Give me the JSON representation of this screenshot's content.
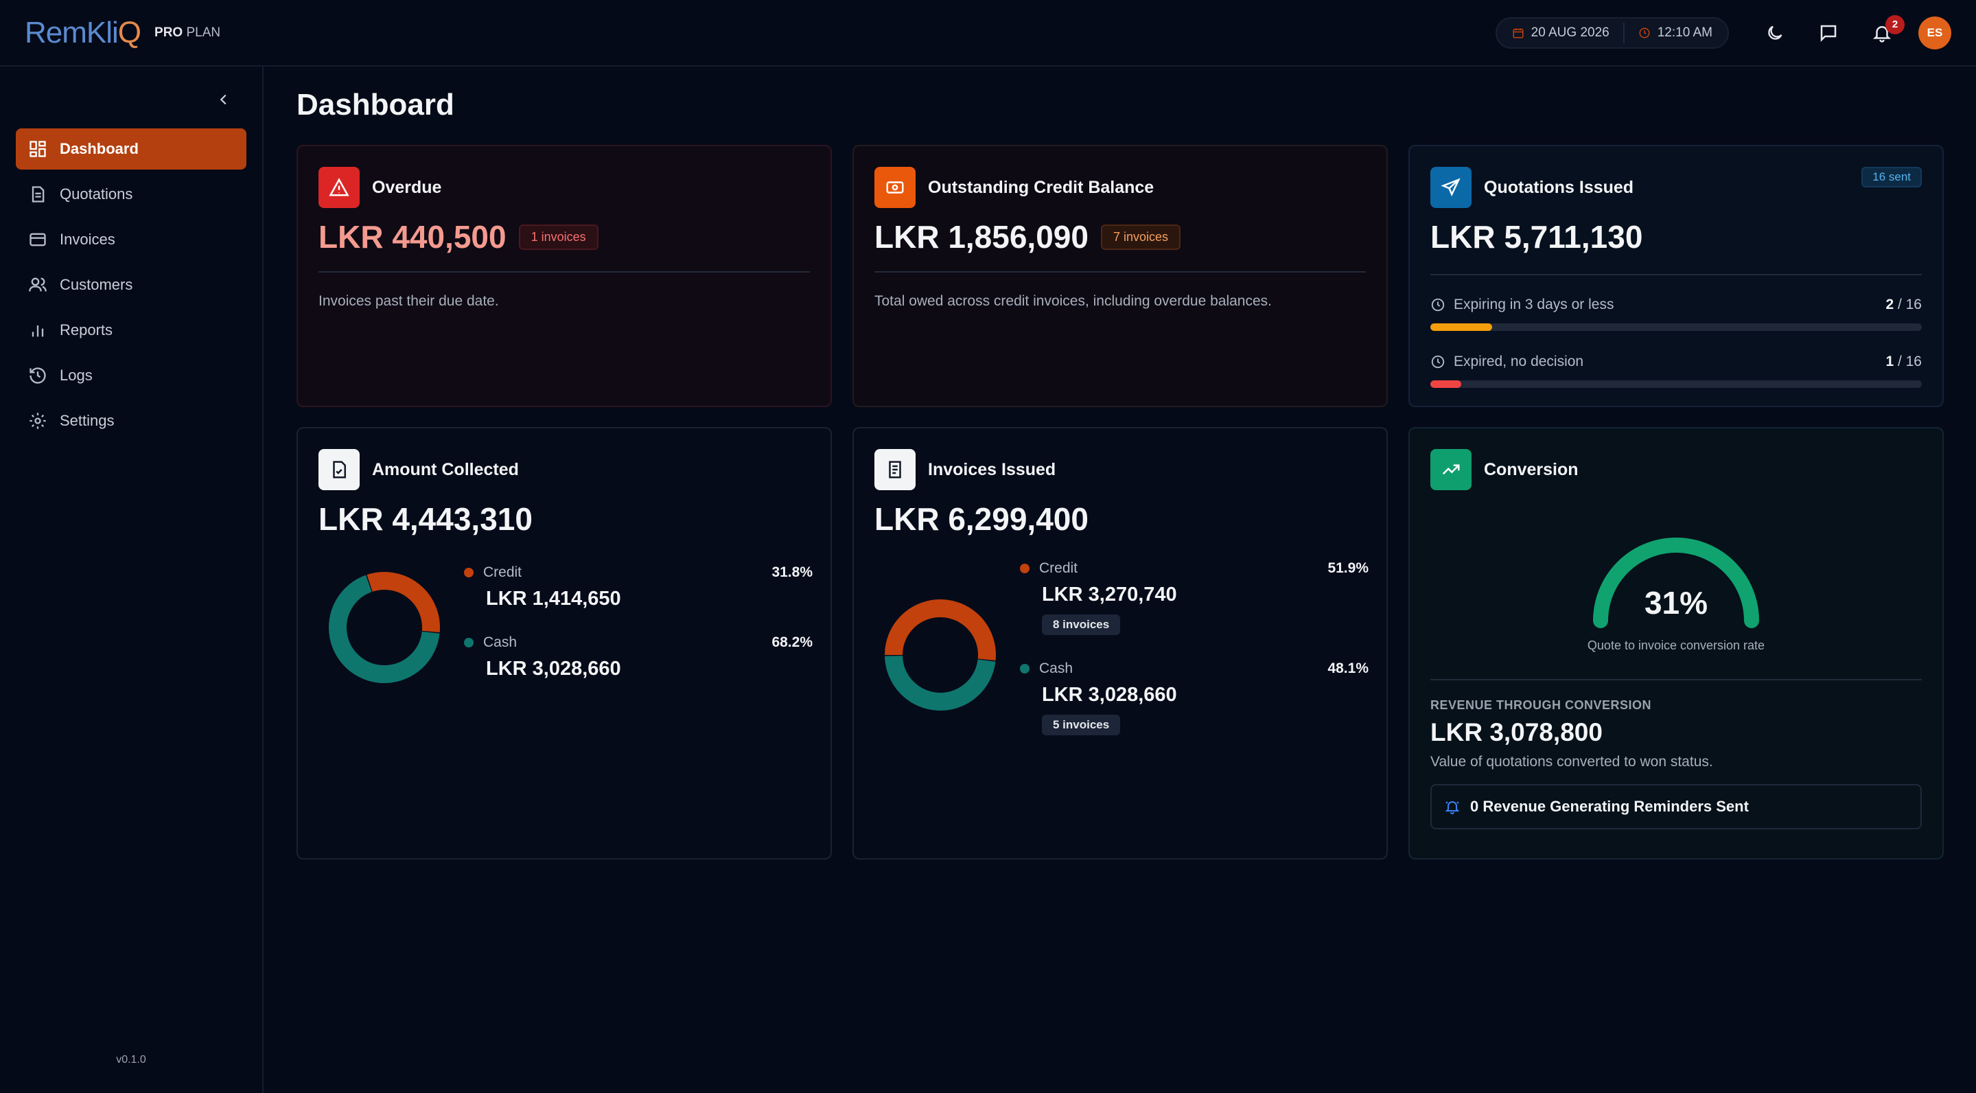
{
  "header": {
    "logo_main": "RemKli",
    "logo_accent": "Q",
    "plan_bold": "PRO",
    "plan_rest": " PLAN",
    "date": "20 AUG 2026",
    "time": "12:10 AM",
    "notification_count": "2",
    "avatar_initials": "ES"
  },
  "sidebar": {
    "items": [
      {
        "label": "Dashboard",
        "icon": "dashboard-icon",
        "active": true
      },
      {
        "label": "Quotations",
        "icon": "document-icon"
      },
      {
        "label": "Invoices",
        "icon": "credit-card-icon"
      },
      {
        "label": "Customers",
        "icon": "users-icon"
      },
      {
        "label": "Reports",
        "icon": "bar-chart-icon"
      },
      {
        "label": "Logs",
        "icon": "history-icon"
      },
      {
        "label": "Settings",
        "icon": "gear-icon"
      }
    ],
    "version": "v0.1.0"
  },
  "page": {
    "title": "Dashboard"
  },
  "colors": {
    "accent": "#b4400f",
    "credit": "#c2410c",
    "cash": "#0f766e",
    "gauge": "#10a36f"
  },
  "cards": {
    "overdue": {
      "title": "Overdue",
      "amount": "LKR 440,500",
      "chip": "1 invoices",
      "desc": "Invoices past their due date."
    },
    "outstanding": {
      "title": "Outstanding Credit Balance",
      "amount": "LKR 1,856,090",
      "chip": "7 invoices",
      "desc": "Total owed across credit invoices, including overdue balances."
    },
    "quotations": {
      "title": "Quotations Issued",
      "amount": "LKR 5,711,130",
      "chip": "16 sent",
      "expiring": {
        "label": "Expiring in 3 days or less",
        "count": "2",
        "total": " / 16",
        "fraction": 0.125
      },
      "expired": {
        "label": "Expired, no decision",
        "count": "1",
        "total": " / 16",
        "fraction": 0.0625
      }
    },
    "collected": {
      "title": "Amount Collected",
      "amount": "LKR 4,443,310",
      "credit": {
        "label": "Credit",
        "pct": "31.8%",
        "value": "LKR 1,414,650",
        "fraction": 0.318
      },
      "cash": {
        "label": "Cash",
        "pct": "68.2%",
        "value": "LKR 3,028,660",
        "fraction": 0.682
      }
    },
    "issued": {
      "title": "Invoices Issued",
      "amount": "LKR 6,299,400",
      "credit": {
        "label": "Credit",
        "pct": "51.9%",
        "value": "LKR 3,270,740",
        "chip": "8 invoices",
        "fraction": 0.519
      },
      "cash": {
        "label": "Cash",
        "pct": "48.1%",
        "value": "LKR 3,028,660",
        "chip": "5 invoices",
        "fraction": 0.481
      }
    },
    "conversion": {
      "title": "Conversion",
      "rate": "31%",
      "rate_fraction": 0.31,
      "caption": "Quote to invoice conversion rate",
      "revenue_label": "REVENUE THROUGH CONVERSION",
      "revenue_value": "LKR 3,078,800",
      "revenue_desc": "Value of quotations converted to won status.",
      "reminders": "0 Revenue Generating Reminders Sent"
    }
  }
}
